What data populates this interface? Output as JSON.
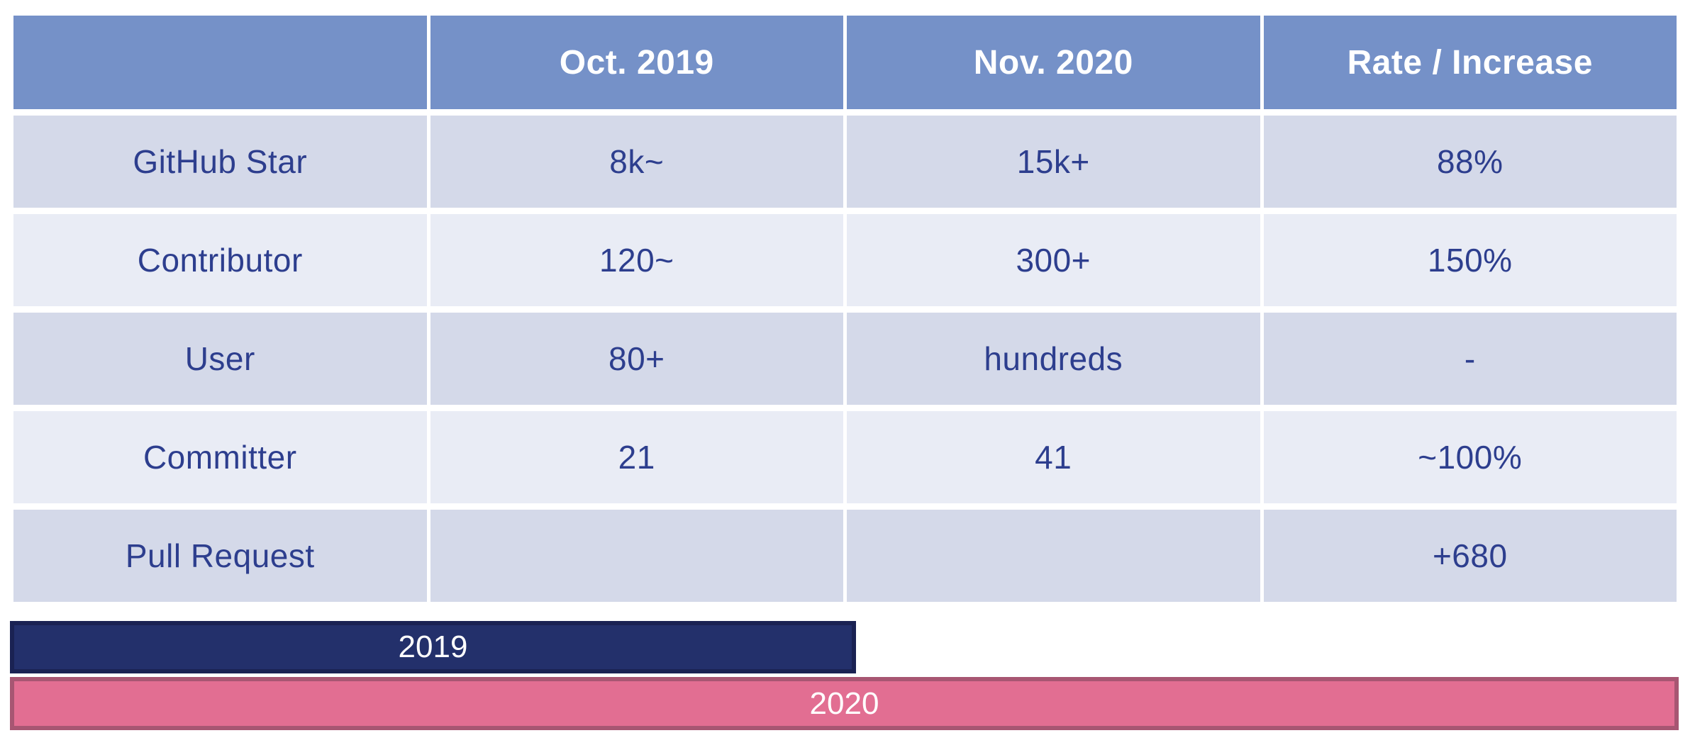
{
  "colors": {
    "page_bg": "#ffffff",
    "header_bg": "#7591c8",
    "header_text": "#ffffff",
    "row_odd_bg": "#d4d9e9",
    "row_even_bg": "#e9ecf5",
    "cell_text": "#2d3e8e",
    "bar_2019_fill": "#23306b",
    "bar_2019_border": "#1a2253",
    "bar_2020_fill": "#e26e92",
    "bar_2020_border": "#a75672",
    "bar_text": "#ffffff"
  },
  "table": {
    "headers": [
      "",
      "Oct. 2019",
      "Nov. 2020",
      "Rate / Increase"
    ],
    "rows": [
      {
        "cells": [
          "GitHub Star",
          "8k~",
          "15k+",
          "88%"
        ]
      },
      {
        "cells": [
          "Contributor",
          "120~",
          "300+",
          "150%"
        ]
      },
      {
        "cells": [
          "User",
          "80+",
          "hundreds",
          "-"
        ]
      },
      {
        "cells": [
          "Committer",
          "21",
          "41",
          "~100%"
        ]
      },
      {
        "cells": [
          "Pull Request",
          "",
          "",
          "+680"
        ]
      }
    ]
  },
  "bars": {
    "bar_2019": {
      "label": "2019",
      "width_pct": 50.7
    },
    "bar_2020": {
      "label": "2020",
      "width_pct": 100
    }
  },
  "chart_data": [
    {
      "type": "table",
      "columns": [
        "",
        "Oct. 2019",
        "Nov. 2020",
        "Rate / Increase"
      ],
      "rows": [
        [
          "GitHub Star",
          "8k~",
          "15k+",
          "88%"
        ],
        [
          "Contributor",
          "120~",
          "300+",
          "150%"
        ],
        [
          "User",
          "80+",
          "hundreds",
          "-"
        ],
        [
          "Committer",
          "21",
          "41",
          "~100%"
        ],
        [
          "Pull Request",
          "",
          "",
          "+680"
        ]
      ]
    },
    {
      "type": "bar",
      "orientation": "horizontal",
      "categories": [
        "2019",
        "2020"
      ],
      "values": [
        50.7,
        100
      ],
      "unit": "percent of full bar width",
      "colors": [
        "#23306b",
        "#e26e92"
      ],
      "title": "",
      "xlabel": "",
      "ylabel": "",
      "legend_position": "labels-inside-bars"
    }
  ]
}
